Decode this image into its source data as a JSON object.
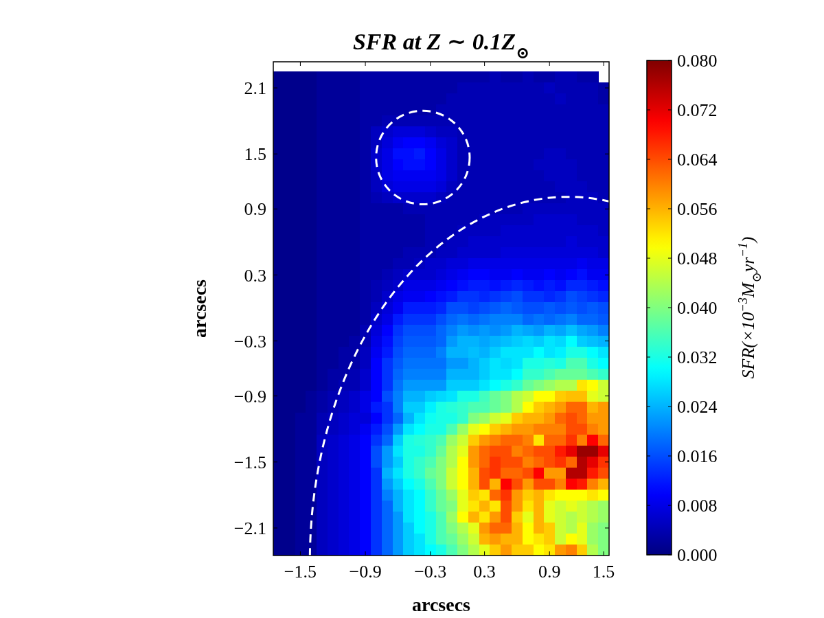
{
  "chart_data": {
    "type": "heatmap",
    "title": "SFR at Z ∼ 0.1Z$_{⊙}$",
    "xlabel": "arcsecs",
    "ylabel": "arcsecs",
    "clabel": "SFR(×10$^{−3}$M$_{⊙}$yr$^{−1}$)",
    "categories": [
      null,
      null,
      "−1.5",
      null,
      null,
      null,
      null,
      null,
      "−0.9",
      null,
      null,
      null,
      null,
      null,
      "−0.3",
      null,
      null,
      null,
      null,
      "0.3",
      null,
      null,
      null,
      null,
      null,
      "0.9",
      null,
      null,
      null,
      null,
      "1.5"
    ],
    "y_categories": [
      null,
      "2.1",
      null,
      null,
      null,
      null,
      null,
      "1.5",
      null,
      null,
      null,
      null,
      "0.9",
      null,
      null,
      null,
      null,
      null,
      "0.3",
      null,
      null,
      null,
      null,
      null,
      "−0.3",
      null,
      null,
      null,
      null,
      "−0.9",
      null,
      null,
      null,
      null,
      null,
      "−1.5",
      null,
      null,
      null,
      null,
      null,
      "−2.1",
      null,
      null
    ],
    "cells": [
      [
        0.001,
        0.001,
        0.001,
        0.001,
        0.002,
        0.002,
        0.002,
        0.002,
        0.003,
        0.003,
        0.003,
        0.003,
        0.003,
        0.003,
        0.003,
        0.003,
        0.003,
        0.003,
        0.003,
        0.003,
        0.004,
        0.003,
        0.003,
        0.004,
        0.003,
        0.003,
        0.004,
        0.004,
        0.003,
        0.003,
        null
      ],
      [
        0.001,
        0.001,
        0.001,
        0.001,
        0.002,
        0.002,
        0.002,
        0.002,
        0.003,
        0.003,
        0.003,
        0.003,
        0.003,
        0.003,
        0.003,
        0.003,
        0.003,
        0.004,
        0.004,
        0.004,
        0.004,
        0.004,
        0.004,
        0.004,
        0.004,
        0.005,
        0.004,
        0.004,
        0.004,
        0.004,
        0.003
      ],
      [
        0.001,
        0.001,
        0.001,
        0.001,
        0.002,
        0.002,
        0.002,
        0.002,
        0.003,
        0.003,
        0.003,
        0.003,
        0.003,
        0.003,
        0.003,
        0.003,
        0.004,
        0.004,
        0.004,
        0.004,
        0.004,
        0.004,
        0.004,
        0.004,
        0.004,
        0.004,
        0.005,
        0.004,
        0.004,
        0.004,
        0.003
      ],
      [
        0.001,
        0.001,
        0.001,
        0.001,
        0.002,
        0.002,
        0.002,
        0.002,
        0.003,
        0.003,
        0.003,
        0.003,
        0.003,
        0.003,
        0.003,
        0.004,
        0.004,
        0.004,
        0.004,
        0.004,
        0.004,
        0.004,
        0.004,
        0.004,
        0.004,
        0.004,
        0.004,
        0.004,
        0.004,
        0.004,
        0.004
      ],
      [
        0.001,
        0.001,
        0.001,
        0.001,
        0.002,
        0.002,
        0.002,
        0.002,
        0.003,
        0.003,
        0.004,
        0.004,
        0.004,
        0.004,
        0.004,
        0.004,
        0.004,
        0.004,
        0.004,
        0.004,
        0.004,
        0.004,
        0.004,
        0.004,
        0.004,
        0.004,
        0.004,
        0.004,
        0.004,
        0.004,
        0.004
      ],
      [
        0.001,
        0.001,
        0.001,
        0.001,
        0.002,
        0.002,
        0.002,
        0.002,
        0.003,
        0.005,
        0.006,
        0.007,
        0.007,
        0.007,
        0.006,
        0.005,
        0.005,
        0.004,
        0.004,
        0.004,
        0.004,
        0.004,
        0.004,
        0.004,
        0.004,
        0.004,
        0.004,
        0.004,
        0.004,
        0.004,
        0.004
      ],
      [
        0.001,
        0.001,
        0.001,
        0.001,
        0.002,
        0.002,
        0.002,
        0.002,
        0.003,
        0.005,
        0.007,
        0.009,
        0.01,
        0.01,
        0.009,
        0.007,
        0.006,
        0.004,
        0.004,
        0.004,
        0.004,
        0.004,
        0.004,
        0.004,
        0.004,
        0.004,
        0.004,
        0.004,
        0.004,
        0.004,
        0.004
      ],
      [
        0.001,
        0.001,
        0.001,
        0.001,
        0.002,
        0.002,
        0.002,
        0.002,
        0.003,
        0.006,
        0.008,
        0.011,
        0.011,
        0.012,
        0.01,
        0.008,
        0.006,
        0.004,
        0.004,
        0.004,
        0.004,
        0.004,
        0.004,
        0.004,
        0.004,
        0.005,
        0.005,
        0.004,
        0.004,
        0.004,
        0.004
      ],
      [
        0.001,
        0.001,
        0.001,
        0.001,
        0.002,
        0.002,
        0.002,
        0.002,
        0.003,
        0.006,
        0.008,
        0.01,
        0.011,
        0.011,
        0.01,
        0.008,
        0.006,
        0.004,
        0.004,
        0.004,
        0.004,
        0.004,
        0.004,
        0.004,
        0.005,
        0.005,
        0.005,
        0.005,
        0.004,
        0.004,
        0.004
      ],
      [
        0.001,
        0.001,
        0.001,
        0.001,
        0.002,
        0.002,
        0.002,
        0.002,
        0.003,
        0.005,
        0.008,
        0.009,
        0.009,
        0.009,
        0.009,
        0.008,
        0.006,
        0.004,
        0.004,
        0.004,
        0.004,
        0.004,
        0.004,
        0.004,
        0.004,
        0.005,
        0.005,
        0.005,
        0.004,
        0.004,
        0.004
      ],
      [
        0.001,
        0.001,
        0.001,
        0.001,
        0.002,
        0.002,
        0.002,
        0.002,
        0.003,
        0.005,
        0.007,
        0.008,
        0.008,
        0.008,
        0.008,
        0.007,
        0.005,
        0.004,
        0.004,
        0.004,
        0.004,
        0.004,
        0.004,
        0.004,
        0.004,
        0.004,
        0.005,
        0.005,
        0.005,
        0.004,
        0.004
      ],
      [
        0.001,
        0.001,
        0.001,
        0.001,
        0.002,
        0.002,
        0.002,
        0.002,
        0.003,
        0.004,
        0.005,
        0.006,
        0.006,
        0.006,
        0.006,
        0.005,
        0.004,
        0.004,
        0.004,
        0.004,
        0.004,
        0.004,
        0.004,
        0.004,
        0.004,
        0.004,
        0.004,
        0.005,
        0.005,
        0.005,
        0.004
      ],
      [
        0.001,
        0.001,
        0.001,
        0.001,
        0.002,
        0.002,
        0.002,
        0.002,
        0.003,
        0.003,
        0.003,
        0.003,
        0.004,
        0.004,
        0.004,
        0.004,
        0.004,
        0.004,
        0.004,
        0.004,
        0.004,
        0.004,
        0.004,
        0.005,
        0.005,
        0.005,
        0.005,
        0.005,
        0.005,
        0.005,
        0.005
      ],
      [
        0.001,
        0.001,
        0.001,
        0.001,
        0.002,
        0.002,
        0.002,
        0.002,
        0.003,
        0.003,
        0.003,
        0.003,
        0.003,
        0.003,
        0.004,
        0.004,
        0.004,
        0.004,
        0.004,
        0.005,
        0.005,
        0.005,
        0.005,
        0.005,
        0.006,
        0.006,
        0.006,
        0.006,
        0.005,
        0.005,
        0.005
      ],
      [
        0.001,
        0.001,
        0.001,
        0.001,
        0.002,
        0.002,
        0.002,
        0.002,
        0.003,
        0.003,
        0.003,
        0.003,
        0.003,
        0.003,
        0.004,
        0.004,
        0.004,
        0.005,
        0.005,
        0.005,
        0.005,
        0.006,
        0.006,
        0.006,
        0.006,
        0.006,
        0.006,
        0.006,
        0.006,
        0.006,
        0.005
      ],
      [
        0.001,
        0.001,
        0.001,
        0.001,
        0.002,
        0.002,
        0.002,
        0.002,
        0.003,
        0.003,
        0.003,
        0.003,
        0.003,
        0.003,
        0.004,
        0.004,
        0.005,
        0.005,
        0.006,
        0.006,
        0.006,
        0.006,
        0.006,
        0.006,
        0.006,
        0.006,
        0.006,
        0.007,
        0.006,
        0.006,
        0.006
      ],
      [
        0.001,
        0.001,
        0.001,
        0.001,
        0.002,
        0.002,
        0.002,
        0.002,
        0.003,
        0.003,
        0.003,
        0.003,
        0.004,
        0.004,
        0.004,
        0.005,
        0.005,
        0.006,
        0.006,
        0.006,
        0.006,
        0.007,
        0.007,
        0.007,
        0.007,
        0.007,
        0.007,
        0.007,
        0.007,
        0.007,
        0.006
      ],
      [
        0.001,
        0.001,
        0.001,
        0.001,
        0.002,
        0.002,
        0.002,
        0.002,
        0.003,
        0.003,
        0.003,
        0.004,
        0.004,
        0.005,
        0.006,
        0.006,
        0.007,
        0.007,
        0.008,
        0.008,
        0.008,
        0.008,
        0.008,
        0.008,
        0.008,
        0.008,
        0.008,
        0.008,
        0.009,
        0.008,
        0.008
      ],
      [
        0.001,
        0.001,
        0.001,
        0.001,
        0.002,
        0.002,
        0.002,
        0.002,
        0.003,
        0.003,
        0.004,
        0.005,
        0.006,
        0.006,
        0.006,
        0.007,
        0.008,
        0.009,
        0.01,
        0.01,
        0.009,
        0.009,
        0.01,
        0.009,
        0.009,
        0.01,
        0.009,
        0.01,
        0.011,
        0.009,
        0.009
      ],
      [
        0.001,
        0.001,
        0.001,
        0.001,
        0.002,
        0.002,
        0.002,
        0.002,
        0.003,
        0.004,
        0.005,
        0.006,
        0.008,
        0.008,
        0.008,
        0.009,
        0.01,
        0.011,
        0.012,
        0.012,
        0.011,
        0.012,
        0.013,
        0.012,
        0.011,
        0.012,
        0.011,
        0.013,
        0.013,
        0.012,
        0.011
      ],
      [
        0.001,
        0.001,
        0.001,
        0.001,
        0.002,
        0.002,
        0.002,
        0.002,
        0.003,
        0.004,
        0.006,
        0.008,
        0.009,
        0.009,
        0.01,
        0.011,
        0.012,
        0.014,
        0.014,
        0.013,
        0.014,
        0.015,
        0.016,
        0.014,
        0.014,
        0.013,
        0.014,
        0.016,
        0.015,
        0.014,
        0.013
      ],
      [
        0.001,
        0.001,
        0.001,
        0.001,
        0.002,
        0.002,
        0.002,
        0.002,
        0.003,
        0.005,
        0.007,
        0.009,
        0.012,
        0.012,
        0.012,
        0.013,
        0.016,
        0.016,
        0.015,
        0.016,
        0.017,
        0.018,
        0.017,
        0.016,
        0.016,
        0.017,
        0.016,
        0.017,
        0.016,
        0.017,
        0.016
      ],
      [
        0.001,
        0.001,
        0.001,
        0.001,
        0.002,
        0.002,
        0.002,
        0.002,
        0.003,
        0.006,
        0.008,
        0.012,
        0.014,
        0.014,
        0.014,
        0.016,
        0.018,
        0.019,
        0.018,
        0.019,
        0.02,
        0.02,
        0.02,
        0.018,
        0.019,
        0.018,
        0.019,
        0.02,
        0.018,
        0.018,
        0.017
      ],
      [
        0.001,
        0.001,
        0.001,
        0.001,
        0.002,
        0.002,
        0.002,
        0.002,
        0.004,
        0.007,
        0.01,
        0.014,
        0.016,
        0.016,
        0.016,
        0.018,
        0.02,
        0.022,
        0.021,
        0.022,
        0.021,
        0.022,
        0.024,
        0.023,
        0.022,
        0.024,
        0.023,
        0.025,
        0.023,
        0.022,
        0.02
      ],
      [
        0.001,
        0.001,
        0.001,
        0.001,
        0.002,
        0.002,
        0.002,
        0.003,
        0.004,
        0.008,
        0.011,
        0.015,
        0.017,
        0.017,
        0.017,
        0.018,
        0.022,
        0.024,
        0.024,
        0.023,
        0.024,
        0.025,
        0.026,
        0.027,
        0.026,
        0.028,
        0.027,
        0.03,
        0.026,
        0.025,
        0.024
      ],
      [
        0.001,
        0.001,
        0.001,
        0.001,
        0.002,
        0.002,
        0.003,
        0.003,
        0.005,
        0.009,
        0.012,
        0.016,
        0.018,
        0.018,
        0.018,
        0.02,
        0.024,
        0.024,
        0.025,
        0.024,
        0.026,
        0.028,
        0.028,
        0.028,
        0.03,
        0.028,
        0.029,
        0.032,
        0.032,
        0.03,
        0.028
      ],
      [
        0.001,
        0.001,
        0.001,
        0.001,
        0.002,
        0.002,
        0.003,
        0.003,
        0.005,
        0.01,
        0.014,
        0.017,
        0.019,
        0.019,
        0.019,
        0.019,
        0.022,
        0.022,
        0.024,
        0.026,
        0.028,
        0.027,
        0.028,
        0.032,
        0.032,
        0.033,
        0.032,
        0.036,
        0.036,
        0.032,
        0.03
      ],
      [
        0.001,
        0.001,
        0.001,
        0.001,
        0.002,
        0.003,
        0.003,
        0.004,
        0.006,
        0.01,
        0.014,
        0.018,
        0.02,
        0.02,
        0.02,
        0.02,
        0.024,
        0.024,
        0.024,
        0.026,
        0.028,
        0.028,
        0.03,
        0.034,
        0.034,
        0.036,
        0.038,
        0.038,
        0.038,
        0.036,
        0.034
      ],
      [
        0.001,
        0.001,
        0.001,
        0.001,
        0.002,
        0.003,
        0.004,
        0.004,
        0.006,
        0.01,
        0.014,
        0.019,
        0.022,
        0.022,
        0.022,
        0.022,
        0.026,
        0.026,
        0.026,
        0.028,
        0.03,
        0.032,
        0.034,
        0.038,
        0.04,
        0.042,
        0.044,
        0.044,
        0.052,
        0.05,
        0.046
      ],
      [
        0.001,
        0.001,
        0.001,
        0.002,
        0.003,
        0.004,
        0.005,
        0.006,
        0.008,
        0.01,
        0.016,
        0.02,
        0.024,
        0.024,
        0.026,
        0.027,
        0.028,
        0.032,
        0.032,
        0.035,
        0.038,
        0.04,
        0.044,
        0.046,
        0.05,
        0.05,
        0.054,
        0.055,
        0.055,
        0.048,
        0.046
      ],
      [
        0.001,
        0.001,
        0.001,
        0.002,
        0.003,
        0.004,
        0.005,
        0.006,
        0.008,
        0.012,
        0.014,
        0.02,
        0.026,
        0.026,
        0.029,
        0.032,
        0.033,
        0.034,
        0.036,
        0.036,
        0.038,
        0.04,
        0.044,
        0.05,
        0.054,
        0.056,
        0.058,
        0.062,
        0.062,
        0.056,
        0.058
      ],
      [
        0.001,
        0.001,
        0.002,
        0.002,
        0.004,
        0.005,
        0.006,
        0.007,
        0.007,
        0.01,
        0.014,
        0.018,
        0.024,
        0.028,
        0.031,
        0.032,
        0.032,
        0.034,
        0.04,
        0.042,
        0.046,
        0.048,
        0.054,
        0.056,
        0.056,
        0.058,
        0.062,
        0.064,
        0.062,
        0.058,
        0.058
      ],
      [
        0.001,
        0.001,
        0.002,
        0.002,
        0.004,
        0.005,
        0.006,
        0.007,
        0.009,
        0.012,
        0.016,
        0.022,
        0.028,
        0.03,
        0.032,
        0.032,
        0.036,
        0.042,
        0.048,
        0.05,
        0.054,
        0.056,
        0.058,
        0.058,
        0.06,
        0.06,
        0.06,
        0.064,
        0.064,
        0.06,
        0.058
      ],
      [
        0.001,
        0.001,
        0.002,
        0.002,
        0.005,
        0.006,
        0.007,
        0.008,
        0.01,
        0.014,
        0.018,
        0.026,
        0.032,
        0.033,
        0.034,
        0.036,
        0.042,
        0.046,
        0.054,
        0.058,
        0.06,
        0.062,
        0.062,
        0.06,
        0.052,
        0.062,
        0.062,
        0.066,
        0.06,
        0.07,
        0.062
      ],
      [
        0.001,
        0.001,
        0.002,
        0.002,
        0.005,
        0.006,
        0.007,
        0.008,
        0.01,
        0.016,
        0.022,
        0.028,
        0.032,
        0.032,
        0.034,
        0.038,
        0.044,
        0.048,
        0.058,
        0.062,
        0.064,
        0.064,
        0.06,
        0.062,
        0.064,
        0.064,
        0.068,
        0.072,
        0.078,
        0.078,
        0.072
      ],
      [
        0.001,
        0.001,
        0.002,
        0.002,
        0.005,
        0.006,
        0.007,
        0.008,
        0.01,
        0.016,
        0.022,
        0.026,
        0.032,
        0.034,
        0.036,
        0.04,
        0.044,
        0.05,
        0.058,
        0.062,
        0.066,
        0.064,
        0.064,
        0.06,
        0.062,
        0.064,
        0.066,
        0.062,
        0.076,
        0.072,
        0.066
      ],
      [
        0.001,
        0.001,
        0.002,
        0.002,
        0.005,
        0.006,
        0.007,
        0.008,
        0.01,
        0.014,
        0.024,
        0.028,
        0.032,
        0.034,
        0.038,
        0.04,
        0.046,
        0.05,
        0.056,
        0.064,
        0.066,
        0.062,
        0.062,
        0.064,
        0.07,
        0.058,
        0.058,
        0.076,
        0.076,
        0.068,
        0.064
      ],
      [
        0.001,
        0.001,
        0.002,
        0.002,
        0.005,
        0.006,
        0.007,
        0.008,
        0.01,
        0.014,
        0.022,
        0.026,
        0.03,
        0.032,
        0.036,
        0.04,
        0.046,
        0.05,
        0.056,
        0.064,
        0.056,
        0.07,
        0.064,
        0.058,
        0.064,
        0.064,
        0.06,
        0.07,
        0.068,
        0.06,
        0.056
      ],
      [
        0.001,
        0.001,
        0.002,
        0.002,
        0.005,
        0.006,
        0.007,
        0.008,
        0.01,
        0.014,
        0.02,
        0.024,
        0.028,
        0.03,
        0.034,
        0.038,
        0.042,
        0.048,
        0.054,
        0.052,
        0.062,
        0.066,
        0.058,
        0.054,
        0.056,
        0.052,
        0.05,
        0.05,
        0.05,
        0.052,
        0.05
      ],
      [
        0.001,
        0.001,
        0.002,
        0.002,
        0.005,
        0.006,
        0.007,
        0.008,
        0.01,
        0.014,
        0.018,
        0.024,
        0.028,
        0.03,
        0.034,
        0.038,
        0.04,
        0.048,
        0.052,
        0.056,
        0.052,
        0.064,
        0.058,
        0.052,
        0.056,
        0.048,
        0.046,
        0.048,
        0.046,
        0.044,
        0.042
      ],
      [
        0.001,
        0.001,
        0.002,
        0.002,
        0.005,
        0.006,
        0.007,
        0.008,
        0.01,
        0.014,
        0.018,
        0.022,
        0.028,
        0.03,
        0.032,
        0.036,
        0.042,
        0.05,
        0.056,
        0.052,
        0.058,
        0.064,
        0.054,
        0.048,
        0.056,
        0.048,
        0.046,
        0.044,
        0.046,
        0.044,
        0.042
      ],
      [
        0.001,
        0.001,
        0.002,
        0.002,
        0.005,
        0.006,
        0.007,
        0.008,
        0.01,
        0.014,
        0.018,
        0.022,
        0.026,
        0.03,
        0.032,
        0.036,
        0.04,
        0.044,
        0.048,
        0.058,
        0.062,
        0.062,
        0.056,
        0.05,
        0.056,
        0.054,
        0.046,
        0.044,
        0.048,
        0.042,
        0.04
      ],
      [
        0.001,
        0.001,
        0.002,
        0.002,
        0.005,
        0.006,
        0.007,
        0.008,
        0.01,
        0.014,
        0.018,
        0.022,
        0.026,
        0.028,
        0.032,
        0.036,
        0.038,
        0.042,
        0.046,
        0.056,
        0.058,
        0.056,
        0.056,
        0.05,
        0.052,
        0.054,
        0.046,
        0.05,
        0.048,
        0.042,
        0.04
      ],
      [
        0.001,
        0.001,
        0.002,
        0.002,
        0.005,
        0.006,
        0.007,
        0.008,
        0.01,
        0.014,
        0.018,
        0.022,
        0.026,
        0.028,
        0.03,
        0.032,
        0.036,
        0.04,
        0.044,
        0.048,
        0.054,
        0.058,
        0.054,
        0.054,
        0.05,
        0.052,
        0.058,
        0.06,
        0.054,
        0.044,
        0.04
      ]
    ],
    "clim": [
      0,
      0.08
    ],
    "cticks": [
      {
        "value": 0,
        "label": "0.000"
      },
      {
        "value": 0.008,
        "label": "0.008"
      },
      {
        "value": 0.016,
        "label": "0.016"
      },
      {
        "value": 0.024,
        "label": "0.024"
      },
      {
        "value": 0.032,
        "label": "0.032"
      },
      {
        "value": 0.04,
        "label": "0.040"
      },
      {
        "value": 0.048,
        "label": "0.048"
      },
      {
        "value": 0.056,
        "label": "0.056"
      },
      {
        "value": 0.064,
        "label": "0.064"
      },
      {
        "value": 0.072,
        "label": "0.072"
      },
      {
        "value": 0.08,
        "label": "0.080"
      }
    ]
  }
}
